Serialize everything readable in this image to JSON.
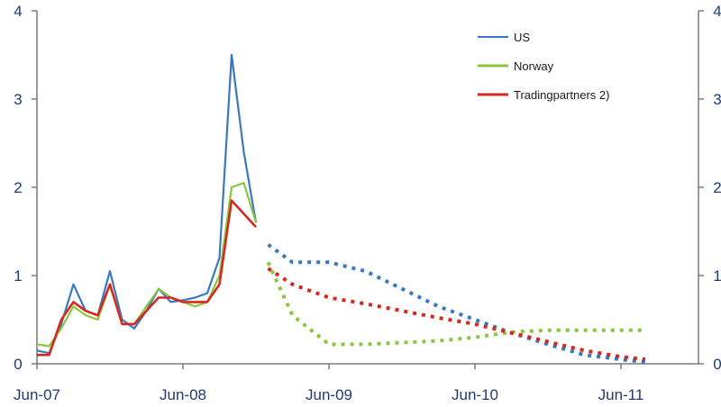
{
  "chart_data": {
    "type": "line",
    "title": "",
    "xlabel": "",
    "ylabel": "",
    "ylim": [
      0,
      4
    ],
    "yticks": [
      "0",
      "1",
      "2",
      "3",
      "4"
    ],
    "yticks_right": [
      "0",
      "1",
      "2",
      "3",
      "4"
    ],
    "xticks": [
      {
        "label": "Jun-07",
        "x": "2007-06"
      },
      {
        "label": "Jun-08",
        "x": "2008-06"
      },
      {
        "label": "Jun-09",
        "x": "2009-06"
      },
      {
        "label": "Jun-10",
        "x": "2010-06"
      },
      {
        "label": "Jun-11",
        "x": "2011-06"
      }
    ],
    "xlim": [
      "2007-06",
      "2011-08"
    ],
    "grid": false,
    "legend_position": "top-right",
    "series": [
      {
        "name": "US",
        "color": "#3a78c2",
        "observed": [
          [
            "2007-06",
            0.15
          ],
          [
            "2007-07",
            0.12
          ],
          [
            "2007-08",
            0.45
          ],
          [
            "2007-09",
            0.9
          ],
          [
            "2007-10",
            0.6
          ],
          [
            "2007-11",
            0.55
          ],
          [
            "2007-12",
            1.05
          ],
          [
            "2008-01",
            0.5
          ],
          [
            "2008-02",
            0.4
          ],
          [
            "2008-03",
            0.6
          ],
          [
            "2008-04",
            0.85
          ],
          [
            "2008-05",
            0.7
          ],
          [
            "2008-06",
            0.72
          ],
          [
            "2008-07",
            0.75
          ],
          [
            "2008-08",
            0.8
          ],
          [
            "2008-09",
            1.2
          ],
          [
            "2008-10",
            3.5
          ],
          [
            "2008-11",
            2.4
          ],
          [
            "2008-12",
            1.6
          ]
        ],
        "forecast": [
          [
            "2009-01",
            1.35
          ],
          [
            "2009-03",
            1.15
          ],
          [
            "2009-06",
            1.15
          ],
          [
            "2009-09",
            1.05
          ],
          [
            "2009-12",
            0.85
          ],
          [
            "2010-03",
            0.65
          ],
          [
            "2010-06",
            0.5
          ],
          [
            "2010-09",
            0.35
          ],
          [
            "2010-12",
            0.22
          ],
          [
            "2011-03",
            0.1
          ],
          [
            "2011-06",
            0.05
          ],
          [
            "2011-08",
            0.02
          ]
        ]
      },
      {
        "name": "Norway",
        "color": "#8cc63f",
        "observed": [
          [
            "2007-06",
            0.22
          ],
          [
            "2007-07",
            0.2
          ],
          [
            "2007-08",
            0.4
          ],
          [
            "2007-09",
            0.65
          ],
          [
            "2007-10",
            0.55
          ],
          [
            "2007-11",
            0.5
          ],
          [
            "2007-12",
            0.9
          ],
          [
            "2008-01",
            0.45
          ],
          [
            "2008-02",
            0.45
          ],
          [
            "2008-03",
            0.65
          ],
          [
            "2008-04",
            0.85
          ],
          [
            "2008-05",
            0.75
          ],
          [
            "2008-06",
            0.7
          ],
          [
            "2008-07",
            0.65
          ],
          [
            "2008-08",
            0.7
          ],
          [
            "2008-09",
            1.0
          ],
          [
            "2008-10",
            2.0
          ],
          [
            "2008-11",
            2.05
          ],
          [
            "2008-12",
            1.6
          ]
        ],
        "forecast": [
          [
            "2009-01",
            1.15
          ],
          [
            "2009-03",
            0.55
          ],
          [
            "2009-06",
            0.22
          ],
          [
            "2009-09",
            0.22
          ],
          [
            "2009-12",
            0.24
          ],
          [
            "2010-03",
            0.26
          ],
          [
            "2010-06",
            0.3
          ],
          [
            "2010-09",
            0.36
          ],
          [
            "2010-12",
            0.38
          ],
          [
            "2011-03",
            0.38
          ],
          [
            "2011-06",
            0.38
          ],
          [
            "2011-08",
            0.38
          ]
        ]
      },
      {
        "name": "Tradingpartners 2)",
        "color": "#d42a1e",
        "observed": [
          [
            "2007-06",
            0.1
          ],
          [
            "2007-07",
            0.1
          ],
          [
            "2007-08",
            0.5
          ],
          [
            "2007-09",
            0.7
          ],
          [
            "2007-10",
            0.6
          ],
          [
            "2007-11",
            0.55
          ],
          [
            "2007-12",
            0.9
          ],
          [
            "2008-01",
            0.45
          ],
          [
            "2008-02",
            0.45
          ],
          [
            "2008-03",
            0.6
          ],
          [
            "2008-04",
            0.75
          ],
          [
            "2008-05",
            0.75
          ],
          [
            "2008-06",
            0.7
          ],
          [
            "2008-07",
            0.7
          ],
          [
            "2008-08",
            0.7
          ],
          [
            "2008-09",
            0.9
          ],
          [
            "2008-10",
            1.85
          ],
          [
            "2008-11",
            1.7
          ],
          [
            "2008-12",
            1.55
          ]
        ],
        "forecast": [
          [
            "2009-01",
            1.08
          ],
          [
            "2009-03",
            0.9
          ],
          [
            "2009-06",
            0.75
          ],
          [
            "2009-09",
            0.68
          ],
          [
            "2009-12",
            0.6
          ],
          [
            "2010-03",
            0.52
          ],
          [
            "2010-06",
            0.45
          ],
          [
            "2010-09",
            0.35
          ],
          [
            "2010-12",
            0.25
          ],
          [
            "2011-03",
            0.15
          ],
          [
            "2011-06",
            0.08
          ],
          [
            "2011-08",
            0.05
          ]
        ]
      }
    ]
  }
}
